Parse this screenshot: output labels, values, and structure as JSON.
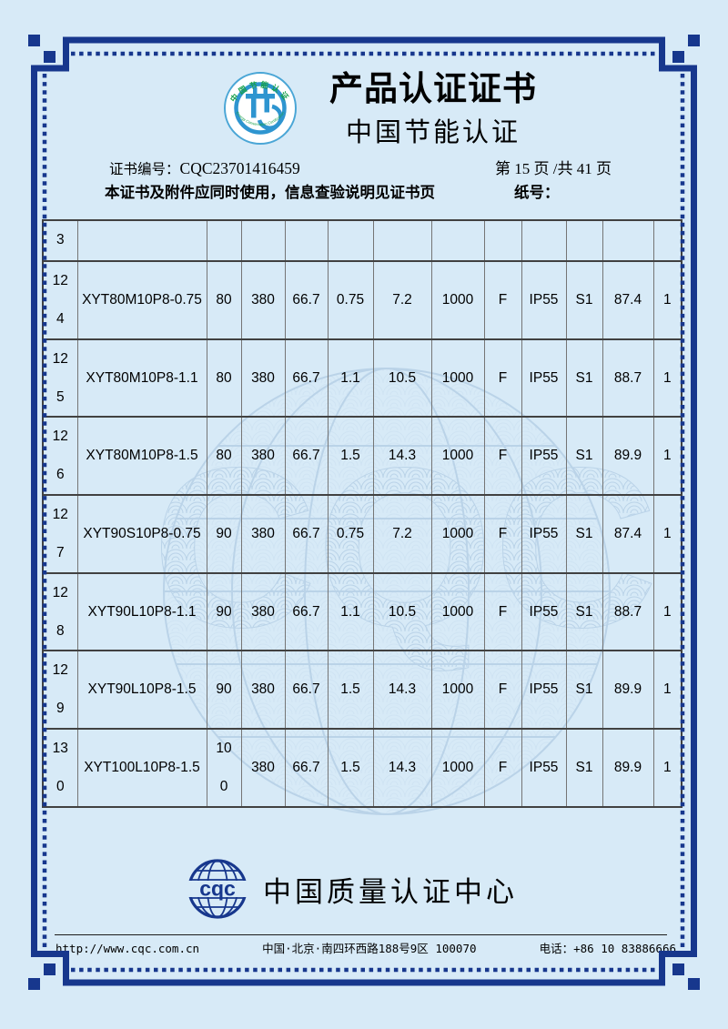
{
  "colors": {
    "page_bg": "#d7eaf7",
    "frame_navy": "#17378d",
    "logo_blue": "#2e95d0",
    "logo_green": "#189e4a",
    "watermark_blue": "#a9c5df",
    "grid_dark": "#414141",
    "grid_gray": "#757575",
    "title_color": "#000000"
  },
  "header": {
    "title": "产品认证证书",
    "subtitle": "中国节能认证",
    "logo_arc_top": "中国节能认证",
    "logo_arc_bottom": "Energy Conservation Certification",
    "cert_no_label": "证书编号：",
    "cert_no": "CQC23701416459",
    "page_info": "第 15 页 /共 41 页",
    "usage_note": "本证书及附件应同时使用，信息查验说明见证书页",
    "paper_no_label": "纸号："
  },
  "table": {
    "partial_row_no": "3",
    "rows": [
      {
        "no": "124",
        "cells": [
          "XYT80M10P8-0.75",
          "80",
          "380",
          "66.7",
          "0.75",
          "7.2",
          "1000",
          "F",
          "IP55",
          "S1",
          "87.4",
          "1"
        ]
      },
      {
        "no": "125",
        "cells": [
          "XYT80M10P8-1.1",
          "80",
          "380",
          "66.7",
          "1.1",
          "10.5",
          "1000",
          "F",
          "IP55",
          "S1",
          "88.7",
          "1"
        ]
      },
      {
        "no": "126",
        "cells": [
          "XYT80M10P8-1.5",
          "80",
          "380",
          "66.7",
          "1.5",
          "14.3",
          "1000",
          "F",
          "IP55",
          "S1",
          "89.9",
          "1"
        ]
      },
      {
        "no": "127",
        "cells": [
          "XYT90S10P8-0.75",
          "90",
          "380",
          "66.7",
          "0.75",
          "7.2",
          "1000",
          "F",
          "IP55",
          "S1",
          "87.4",
          "1"
        ]
      },
      {
        "no": "128",
        "cells": [
          "XYT90L10P8-1.1",
          "90",
          "380",
          "66.7",
          "1.1",
          "10.5",
          "1000",
          "F",
          "IP55",
          "S1",
          "88.7",
          "1"
        ]
      },
      {
        "no": "129",
        "cells": [
          "XYT90L10P8-1.5",
          "90",
          "380",
          "66.7",
          "1.5",
          "14.3",
          "1000",
          "F",
          "IP55",
          "S1",
          "89.9",
          "1"
        ]
      },
      {
        "no": "130",
        "cells": [
          "XYT100L10P8-1.5",
          "100",
          "380",
          "66.7",
          "1.5",
          "14.3",
          "1000",
          "F",
          "IP55",
          "S1",
          "89.9",
          "1"
        ]
      }
    ]
  },
  "footer": {
    "logo_text": "cqc",
    "watermark_text": "CQC",
    "org_name": "中国质量认证中心"
  },
  "bottom_bar": {
    "url": "http://www.cqc.com.cn",
    "address": "中国·北京·南四环西路188号9区  100070",
    "phone": "电话：+86 10 83886666"
  }
}
